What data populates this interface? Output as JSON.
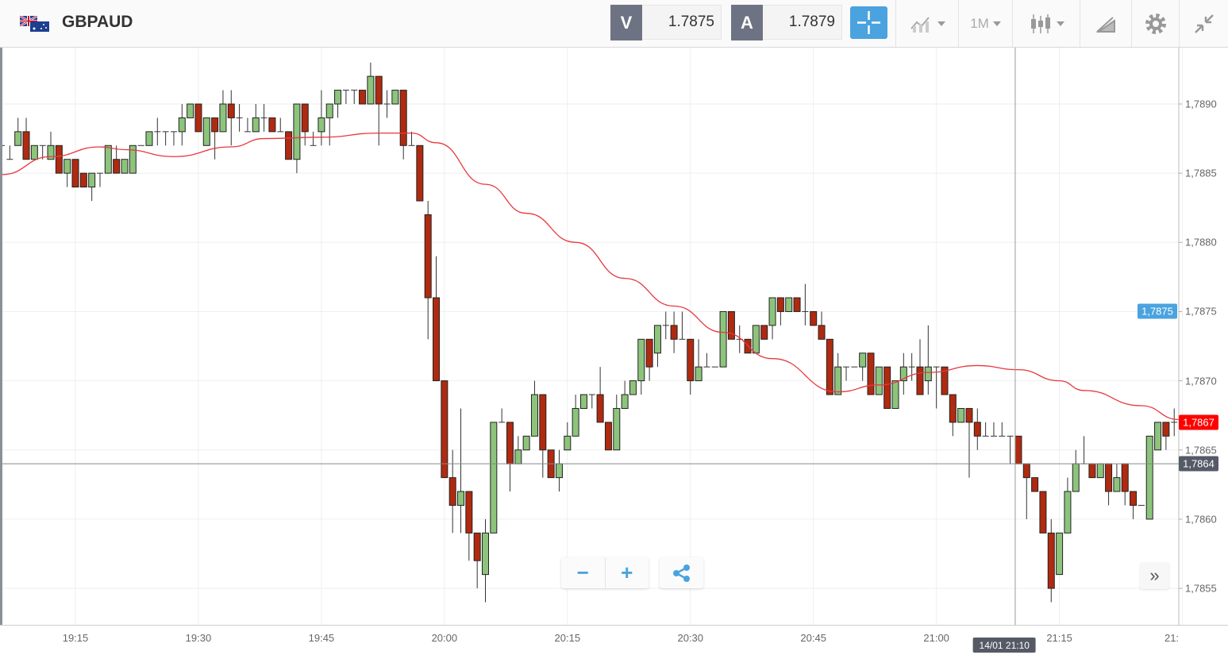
{
  "header": {
    "symbol": "GBPAUD",
    "flag_icon": "gb-au-flag-icon",
    "sell_label": "V",
    "sell_price": "1.7875",
    "buy_label": "A",
    "buy_price": "1.7879",
    "timeframe": "1M",
    "tools": [
      "crosshair-icon",
      "chart-type-icon",
      "timeframe-dropdown",
      "candles-icon",
      "draw-icon",
      "gear-icon",
      "collapse-icon"
    ],
    "accent": "#4aa3df"
  },
  "controls": {
    "zoom_out": "−",
    "zoom_in": "+",
    "share_icon": "share-icon",
    "scroll_end": "»"
  },
  "price_labels": {
    "sell": {
      "text": "1,7875",
      "value": 1.7875,
      "color": "#4aa3df"
    },
    "last": {
      "text": "1,7867",
      "value": 1.7867,
      "color": "#ff0000"
    },
    "crosshair": {
      "text": "1,7864",
      "value": 1.7864,
      "color": "#555a66"
    }
  },
  "crosshair_time": {
    "text": "14/01 21:10",
    "time": "21:10"
  },
  "chart_data": {
    "type": "candlestick",
    "symbol": "GBPAUD",
    "interval": "1M",
    "ylim": [
      1.78524,
      1.78941
    ],
    "xlim": [
      "19:06",
      "21:30"
    ],
    "grid": true,
    "up_color": "#8dc47c",
    "down_color": "#b02a10",
    "ma_color": "#e8383d",
    "y_ticks": [
      {
        "value": 1.789,
        "label": "1,7890"
      },
      {
        "value": 1.7885,
        "label": "1,7885"
      },
      {
        "value": 1.788,
        "label": "1,7880"
      },
      {
        "value": 1.7875,
        "label": "1,7875"
      },
      {
        "value": 1.787,
        "label": "1,7870"
      },
      {
        "value": 1.7865,
        "label": "1,7865"
      },
      {
        "value": 1.786,
        "label": "1,7860"
      },
      {
        "value": 1.7855,
        "label": "1,7855"
      }
    ],
    "x_ticks": [
      {
        "time": "19:15",
        "label": "19:15"
      },
      {
        "time": "19:30",
        "label": "19:30"
      },
      {
        "time": "19:45",
        "label": "19:45"
      },
      {
        "time": "20:00",
        "label": "20:00"
      },
      {
        "time": "20:15",
        "label": "20:15"
      },
      {
        "time": "20:30",
        "label": "20:30"
      },
      {
        "time": "20:45",
        "label": "20:45"
      },
      {
        "time": "21:00",
        "label": "21:00"
      },
      {
        "time": "21:15",
        "label": "21:15"
      },
      {
        "time": "21:30",
        "label": "21:"
      }
    ],
    "candles_columns": [
      "time",
      "open",
      "high",
      "low",
      "close"
    ],
    "candles": [
      [
        "19:06",
        1.7887,
        1.7887,
        1.7887,
        1.7887
      ],
      [
        "19:07",
        1.7886,
        1.7887,
        1.7886,
        1.7886
      ],
      [
        "19:08",
        1.7887,
        1.7889,
        1.7887,
        1.7888
      ],
      [
        "19:09",
        1.7888,
        1.7889,
        1.7886,
        1.7886
      ],
      [
        "19:10",
        1.7886,
        1.7887,
        1.7886,
        1.7887
      ],
      [
        "19:11",
        1.7887,
        1.7887,
        1.7886,
        1.7887
      ],
      [
        "19:12",
        1.7886,
        1.7888,
        1.7886,
        1.7887
      ],
      [
        "19:13",
        1.7887,
        1.7887,
        1.7885,
        1.7885
      ],
      [
        "19:14",
        1.7885,
        1.7886,
        1.7884,
        1.7886
      ],
      [
        "19:15",
        1.7886,
        1.7886,
        1.7884,
        1.7884
      ],
      [
        "19:16",
        1.7885,
        1.7885,
        1.7884,
        1.7884
      ],
      [
        "19:17",
        1.7884,
        1.7885,
        1.7883,
        1.7885
      ],
      [
        "19:18",
        1.7885,
        1.7885,
        1.7884,
        1.7885
      ],
      [
        "19:19",
        1.7885,
        1.7887,
        1.7885,
        1.7887
      ],
      [
        "19:20",
        1.7886,
        1.7887,
        1.7885,
        1.7885
      ],
      [
        "19:21",
        1.7885,
        1.7886,
        1.7885,
        1.7886
      ],
      [
        "19:22",
        1.7885,
        1.7887,
        1.7885,
        1.7887
      ],
      [
        "19:23",
        1.7887,
        1.7887,
        1.7887,
        1.7887
      ],
      [
        "19:24",
        1.7887,
        1.7888,
        1.7887,
        1.7888
      ],
      [
        "19:25",
        1.7888,
        1.7889,
        1.7887,
        1.7888
      ],
      [
        "19:26",
        1.7888,
        1.7888,
        1.7887,
        1.7888
      ],
      [
        "19:27",
        1.7888,
        1.7888,
        1.7887,
        1.7888
      ],
      [
        "19:28",
        1.7888,
        1.789,
        1.7887,
        1.7889
      ],
      [
        "19:29",
        1.7889,
        1.789,
        1.7889,
        1.789
      ],
      [
        "19:30",
        1.789,
        1.789,
        1.7888,
        1.7888
      ],
      [
        "19:31",
        1.7887,
        1.7889,
        1.7887,
        1.7889
      ],
      [
        "19:32",
        1.7889,
        1.7889,
        1.7886,
        1.7888
      ],
      [
        "19:33",
        1.7888,
        1.7891,
        1.7888,
        1.789
      ],
      [
        "19:34",
        1.789,
        1.7891,
        1.7887,
        1.7889
      ],
      [
        "19:35",
        1.7889,
        1.789,
        1.7888,
        1.7889
      ],
      [
        "19:36",
        1.7888,
        1.7889,
        1.7888,
        1.7888
      ],
      [
        "19:37",
        1.7888,
        1.789,
        1.7888,
        1.7889
      ],
      [
        "19:38",
        1.7889,
        1.789,
        1.7888,
        1.7889
      ],
      [
        "19:39",
        1.7889,
        1.7889,
        1.7888,
        1.7888
      ],
      [
        "19:40",
        1.7888,
        1.7889,
        1.7888,
        1.7888
      ],
      [
        "19:41",
        1.7888,
        1.7888,
        1.7886,
        1.7886
      ],
      [
        "19:42",
        1.7886,
        1.789,
        1.7885,
        1.789
      ],
      [
        "19:43",
        1.789,
        1.789,
        1.7887,
        1.7888
      ],
      [
        "19:44",
        1.7887,
        1.7888,
        1.7887,
        1.7887
      ],
      [
        "19:45",
        1.7888,
        1.7891,
        1.7887,
        1.7889
      ],
      [
        "19:46",
        1.7889,
        1.789,
        1.7887,
        1.789
      ],
      [
        "19:47",
        1.789,
        1.7891,
        1.7889,
        1.7891
      ],
      [
        "19:48",
        1.7891,
        1.7891,
        1.789,
        1.7891
      ],
      [
        "19:49",
        1.7891,
        1.7891,
        1.789,
        1.7891
      ],
      [
        "19:50",
        1.7891,
        1.7891,
        1.789,
        1.789
      ],
      [
        "19:51",
        1.789,
        1.7893,
        1.789,
        1.7892
      ],
      [
        "19:52",
        1.7892,
        1.7892,
        1.7887,
        1.789
      ],
      [
        "19:53",
        1.789,
        1.7891,
        1.7889,
        1.789
      ],
      [
        "19:54",
        1.789,
        1.7891,
        1.789,
        1.7891
      ],
      [
        "19:55",
        1.7891,
        1.7891,
        1.7886,
        1.7887
      ],
      [
        "19:56",
        1.7887,
        1.7888,
        1.7887,
        1.7887
      ],
      [
        "19:57",
        1.7887,
        1.7887,
        1.7883,
        1.7883
      ],
      [
        "19:58",
        1.7882,
        1.7883,
        1.7873,
        1.7876
      ],
      [
        "19:59",
        1.7876,
        1.7879,
        1.787,
        1.787
      ],
      [
        "20:00",
        1.787,
        1.787,
        1.7863,
        1.7863
      ],
      [
        "20:01",
        1.7863,
        1.7865,
        1.7859,
        1.7861
      ],
      [
        "20:02",
        1.7861,
        1.7868,
        1.7859,
        1.7862
      ],
      [
        "20:03",
        1.7862,
        1.7862,
        1.7857,
        1.7859
      ],
      [
        "20:04",
        1.7859,
        1.7859,
        1.7855,
        1.7857
      ],
      [
        "20:05",
        1.7856,
        1.786,
        1.7854,
        1.7859
      ],
      [
        "20:06",
        1.7859,
        1.7867,
        1.7859,
        1.7867
      ],
      [
        "20:07",
        1.7867,
        1.7868,
        1.7867,
        1.7867
      ],
      [
        "20:08",
        1.7867,
        1.7867,
        1.7862,
        1.7864
      ],
      [
        "20:09",
        1.7864,
        1.7866,
        1.7864,
        1.7865
      ],
      [
        "20:10",
        1.7865,
        1.7866,
        1.7865,
        1.7866
      ],
      [
        "20:11",
        1.7866,
        1.787,
        1.7866,
        1.7869
      ],
      [
        "20:12",
        1.7869,
        1.7869,
        1.7863,
        1.7865
      ],
      [
        "20:13",
        1.7865,
        1.7865,
        1.7863,
        1.7863
      ],
      [
        "20:14",
        1.7863,
        1.7865,
        1.7862,
        1.7864
      ],
      [
        "20:15",
        1.7865,
        1.7867,
        1.7865,
        1.7866
      ],
      [
        "20:16",
        1.7866,
        1.7869,
        1.7866,
        1.7868
      ],
      [
        "20:17",
        1.7868,
        1.7869,
        1.7868,
        1.7869
      ],
      [
        "20:18",
        1.7869,
        1.7869,
        1.7868,
        1.7869
      ],
      [
        "20:19",
        1.7869,
        1.7871,
        1.7867,
        1.7867
      ],
      [
        "20:20",
        1.7867,
        1.7867,
        1.7865,
        1.7865
      ],
      [
        "20:21",
        1.7865,
        1.7869,
        1.7865,
        1.7868
      ],
      [
        "20:22",
        1.7868,
        1.787,
        1.7868,
        1.7869
      ],
      [
        "20:23",
        1.7869,
        1.787,
        1.7869,
        1.787
      ],
      [
        "20:24",
        1.787,
        1.7873,
        1.7869,
        1.7873
      ],
      [
        "20:25",
        1.7873,
        1.7873,
        1.787,
        1.7871
      ],
      [
        "20:26",
        1.7872,
        1.7874,
        1.7871,
        1.7874
      ],
      [
        "20:27",
        1.7874,
        1.7875,
        1.7873,
        1.7874
      ],
      [
        "20:28",
        1.7874,
        1.7875,
        1.7872,
        1.7873
      ],
      [
        "20:29",
        1.7873,
        1.7875,
        1.7873,
        1.7873
      ],
      [
        "20:30",
        1.7873,
        1.7873,
        1.7869,
        1.787
      ],
      [
        "20:31",
        1.787,
        1.7873,
        1.787,
        1.7871
      ],
      [
        "20:32",
        1.7871,
        1.7872,
        1.7871,
        1.7871
      ],
      [
        "20:33",
        1.7871,
        1.7871,
        1.7871,
        1.7871
      ],
      [
        "20:34",
        1.7871,
        1.7875,
        1.7871,
        1.7875
      ],
      [
        "20:35",
        1.7875,
        1.7875,
        1.7873,
        1.7873
      ],
      [
        "20:36",
        1.7873,
        1.7874,
        1.7872,
        1.7873
      ],
      [
        "20:37",
        1.7873,
        1.7873,
        1.7872,
        1.7872
      ],
      [
        "20:38",
        1.7872,
        1.7874,
        1.7872,
        1.7874
      ],
      [
        "20:39",
        1.7874,
        1.7874,
        1.7873,
        1.7873
      ],
      [
        "20:40",
        1.7874,
        1.7876,
        1.7873,
        1.7876
      ],
      [
        "20:41",
        1.7876,
        1.7876,
        1.7874,
        1.7875
      ],
      [
        "20:42",
        1.7875,
        1.7876,
        1.7875,
        1.7876
      ],
      [
        "20:43",
        1.7876,
        1.7876,
        1.7875,
        1.7875
      ],
      [
        "20:44",
        1.7875,
        1.7877,
        1.7874,
        1.7875
      ],
      [
        "20:45",
        1.7875,
        1.7875,
        1.7874,
        1.7874
      ],
      [
        "20:46",
        1.7874,
        1.7875,
        1.7873,
        1.7873
      ],
      [
        "20:47",
        1.7873,
        1.7873,
        1.7869,
        1.7869
      ],
      [
        "20:48",
        1.7869,
        1.7872,
        1.7869,
        1.7871
      ],
      [
        "20:49",
        1.7871,
        1.7871,
        1.787,
        1.7871
      ],
      [
        "20:50",
        1.7871,
        1.7871,
        1.7871,
        1.7871
      ],
      [
        "20:51",
        1.7871,
        1.7872,
        1.787,
        1.7872
      ],
      [
        "20:52",
        1.7872,
        1.7872,
        1.7869,
        1.7869
      ],
      [
        "20:53",
        1.7869,
        1.7871,
        1.7869,
        1.7871
      ],
      [
        "20:54",
        1.7871,
        1.7871,
        1.7868,
        1.7868
      ],
      [
        "20:55",
        1.7868,
        1.787,
        1.7868,
        1.787
      ],
      [
        "20:56",
        1.787,
        1.7872,
        1.7869,
        1.7871
      ],
      [
        "20:57",
        1.7871,
        1.7872,
        1.787,
        1.7871
      ],
      [
        "20:58",
        1.7871,
        1.7873,
        1.7869,
        1.7869
      ],
      [
        "20:59",
        1.787,
        1.7874,
        1.7869,
        1.7871
      ],
      [
        "21:00",
        1.7871,
        1.7871,
        1.7868,
        1.7871
      ],
      [
        "21:01",
        1.7871,
        1.7871,
        1.7869,
        1.7869
      ],
      [
        "21:02",
        1.7869,
        1.7869,
        1.7866,
        1.7867
      ],
      [
        "21:03",
        1.7867,
        1.7868,
        1.7867,
        1.7868
      ],
      [
        "21:04",
        1.7868,
        1.7868,
        1.7863,
        1.7867
      ],
      [
        "21:05",
        1.7867,
        1.7868,
        1.7865,
        1.7866
      ],
      [
        "21:06",
        1.7866,
        1.7867,
        1.7866,
        1.7866
      ],
      [
        "21:07",
        1.7866,
        1.7867,
        1.7866,
        1.7866
      ],
      [
        "21:08",
        1.7866,
        1.7867,
        1.7866,
        1.7866
      ],
      [
        "21:09",
        1.7866,
        1.7866,
        1.7864,
        1.7866
      ],
      [
        "21:10",
        1.7866,
        1.7866,
        1.7864,
        1.7864
      ],
      [
        "21:11",
        1.7864,
        1.7864,
        1.786,
        1.7863
      ],
      [
        "21:12",
        1.7863,
        1.7863,
        1.7862,
        1.7862
      ],
      [
        "21:13",
        1.7862,
        1.7862,
        1.7859,
        1.7859
      ],
      [
        "21:14",
        1.7859,
        1.786,
        1.7854,
        1.7855
      ],
      [
        "21:15",
        1.7856,
        1.7859,
        1.7856,
        1.7859
      ],
      [
        "21:16",
        1.7859,
        1.7863,
        1.7859,
        1.7862
      ],
      [
        "21:17",
        1.7862,
        1.7865,
        1.7862,
        1.7864
      ],
      [
        "21:18",
        1.7864,
        1.7866,
        1.7864,
        1.7864
      ],
      [
        "21:19",
        1.7864,
        1.7864,
        1.7863,
        1.7863
      ],
      [
        "21:20",
        1.7863,
        1.7864,
        1.7863,
        1.7864
      ],
      [
        "21:21",
        1.7864,
        1.7864,
        1.7861,
        1.7862
      ],
      [
        "21:22",
        1.7862,
        1.7864,
        1.7862,
        1.7863
      ],
      [
        "21:23",
        1.7864,
        1.7864,
        1.7861,
        1.7862
      ],
      [
        "21:24",
        1.7862,
        1.7862,
        1.786,
        1.7861
      ],
      [
        "21:25",
        1.7861,
        1.7861,
        1.7861,
        1.7861
      ],
      [
        "21:26",
        1.786,
        1.7866,
        1.786,
        1.7866
      ],
      [
        "21:27",
        1.7865,
        1.7867,
        1.7865,
        1.7867
      ],
      [
        "21:28",
        1.7867,
        1.7867,
        1.7865,
        1.7866
      ],
      [
        "21:29",
        1.7867,
        1.7868,
        1.7866,
        1.7867
      ]
    ],
    "moving_average": [
      [
        "19:06",
        1.78849
      ],
      [
        "19:12",
        1.78862
      ],
      [
        "19:18",
        1.78869
      ],
      [
        "19:21",
        1.78867
      ],
      [
        "19:27",
        1.78862
      ],
      [
        "19:34",
        1.78869
      ],
      [
        "19:38",
        1.78875
      ],
      [
        "19:45",
        1.78876
      ],
      [
        "19:52",
        1.78879
      ],
      [
        "19:56",
        1.78879
      ],
      [
        "19:59",
        1.78872
      ],
      [
        "20:05",
        1.78842
      ],
      [
        "20:10",
        1.78821
      ],
      [
        "20:16",
        1.788
      ],
      [
        "20:22",
        1.78774
      ],
      [
        "20:28",
        1.78754
      ],
      [
        "20:34",
        1.78735
      ],
      [
        "20:40",
        1.78716
      ],
      [
        "20:48",
        1.78692
      ],
      [
        "20:53",
        1.78697
      ],
      [
        "20:59",
        1.78706
      ],
      [
        "21:05",
        1.78711
      ],
      [
        "21:10",
        1.78708
      ],
      [
        "21:15",
        1.787
      ],
      [
        "21:18",
        1.78693
      ],
      [
        "21:25",
        1.78682
      ],
      [
        "21:31",
        1.78672
      ]
    ]
  }
}
